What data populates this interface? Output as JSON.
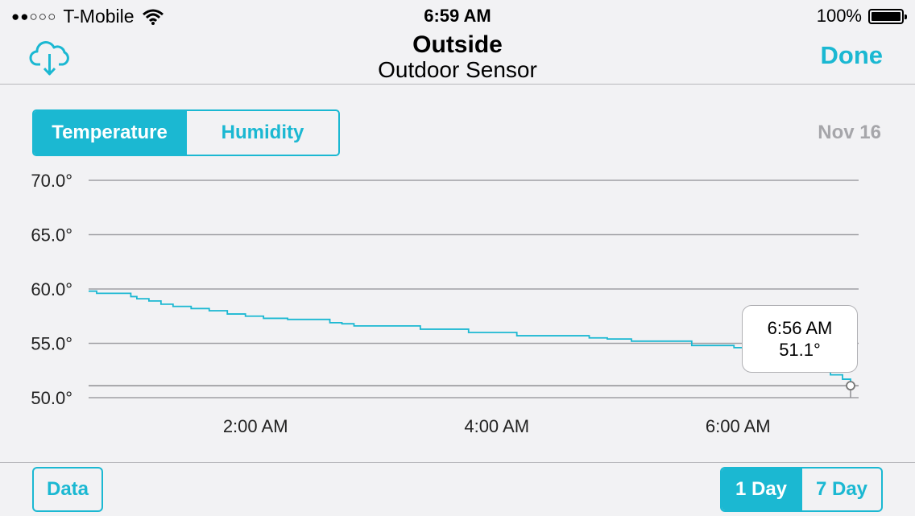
{
  "status_bar": {
    "signal": "●●○○○",
    "carrier": "T-Mobile",
    "time": "6:59 AM",
    "battery": "100%",
    "battery_level": 1.0
  },
  "nav": {
    "title": "Outside",
    "subtitle": "Outdoor Sensor",
    "done_label": "Done",
    "left_icon": "cloud-download-icon"
  },
  "tabs": {
    "temperature": "Temperature",
    "humidity": "Humidity",
    "selected": "Temperature"
  },
  "date_label": "Nov 16",
  "colors": {
    "accent": "#1bb8d2",
    "grid": "#a0a0a4",
    "background": "#f2f2f4"
  },
  "chart_data": {
    "type": "line",
    "ylim": [
      50,
      70
    ],
    "yticks": [
      {
        "value": 70,
        "label": "70.0°"
      },
      {
        "value": 65,
        "label": "65.0°"
      },
      {
        "value": 60,
        "label": "60.0°"
      },
      {
        "value": 55,
        "label": "55.0°"
      },
      {
        "value": 50,
        "label": "50.0°"
      }
    ],
    "xlim": [
      "00:37",
      "06:56"
    ],
    "xticks": [
      {
        "value": "02:00",
        "label": "2:00 AM"
      },
      {
        "value": "04:00",
        "label": "4:00 AM"
      },
      {
        "value": "06:00",
        "label": "6:00 AM"
      }
    ],
    "series": [
      {
        "points": [
          [
            "00:37",
            59.8
          ],
          [
            "00:41",
            59.6
          ],
          [
            "00:55",
            59.6
          ],
          [
            "00:58",
            59.3
          ],
          [
            "01:01",
            59.1
          ],
          [
            "01:07",
            58.9
          ],
          [
            "01:13",
            58.6
          ],
          [
            "01:19",
            58.4
          ],
          [
            "01:28",
            58.2
          ],
          [
            "01:37",
            58.0
          ],
          [
            "01:46",
            57.7
          ],
          [
            "01:55",
            57.5
          ],
          [
            "02:04",
            57.3
          ],
          [
            "02:16",
            57.2
          ],
          [
            "02:28",
            57.2
          ],
          [
            "02:37",
            56.9
          ],
          [
            "02:43",
            56.8
          ],
          [
            "02:49",
            56.6
          ],
          [
            "03:04",
            56.6
          ],
          [
            "03:13",
            56.6
          ],
          [
            "03:22",
            56.3
          ],
          [
            "03:37",
            56.3
          ],
          [
            "03:46",
            56.0
          ],
          [
            "03:58",
            56.0
          ],
          [
            "04:10",
            55.7
          ],
          [
            "04:25",
            55.7
          ],
          [
            "04:37",
            55.7
          ],
          [
            "04:46",
            55.5
          ],
          [
            "04:55",
            55.4
          ],
          [
            "05:07",
            55.2
          ],
          [
            "05:16",
            55.2
          ],
          [
            "05:28",
            55.2
          ],
          [
            "05:37",
            54.8
          ],
          [
            "05:43",
            54.8
          ],
          [
            "05:52",
            54.8
          ],
          [
            "05:58",
            54.6
          ],
          [
            "06:07",
            54.4
          ],
          [
            "06:13",
            54.1
          ],
          [
            "06:22",
            53.8
          ],
          [
            "06:28",
            53.6
          ],
          [
            "06:34",
            53.2
          ],
          [
            "06:40",
            52.7
          ],
          [
            "06:46",
            52.1
          ],
          [
            "06:52",
            51.7
          ],
          [
            "06:56",
            51.1
          ]
        ]
      }
    ],
    "reference_line": 51.1,
    "selected_point": {
      "x": "06:56",
      "y": 51.1
    }
  },
  "tooltip": {
    "time": "6:56 AM",
    "value": "51.1°"
  },
  "bottom": {
    "data_label": "Data",
    "range_1day": "1 Day",
    "range_7day": "7 Day",
    "selected_range": "1 Day"
  }
}
